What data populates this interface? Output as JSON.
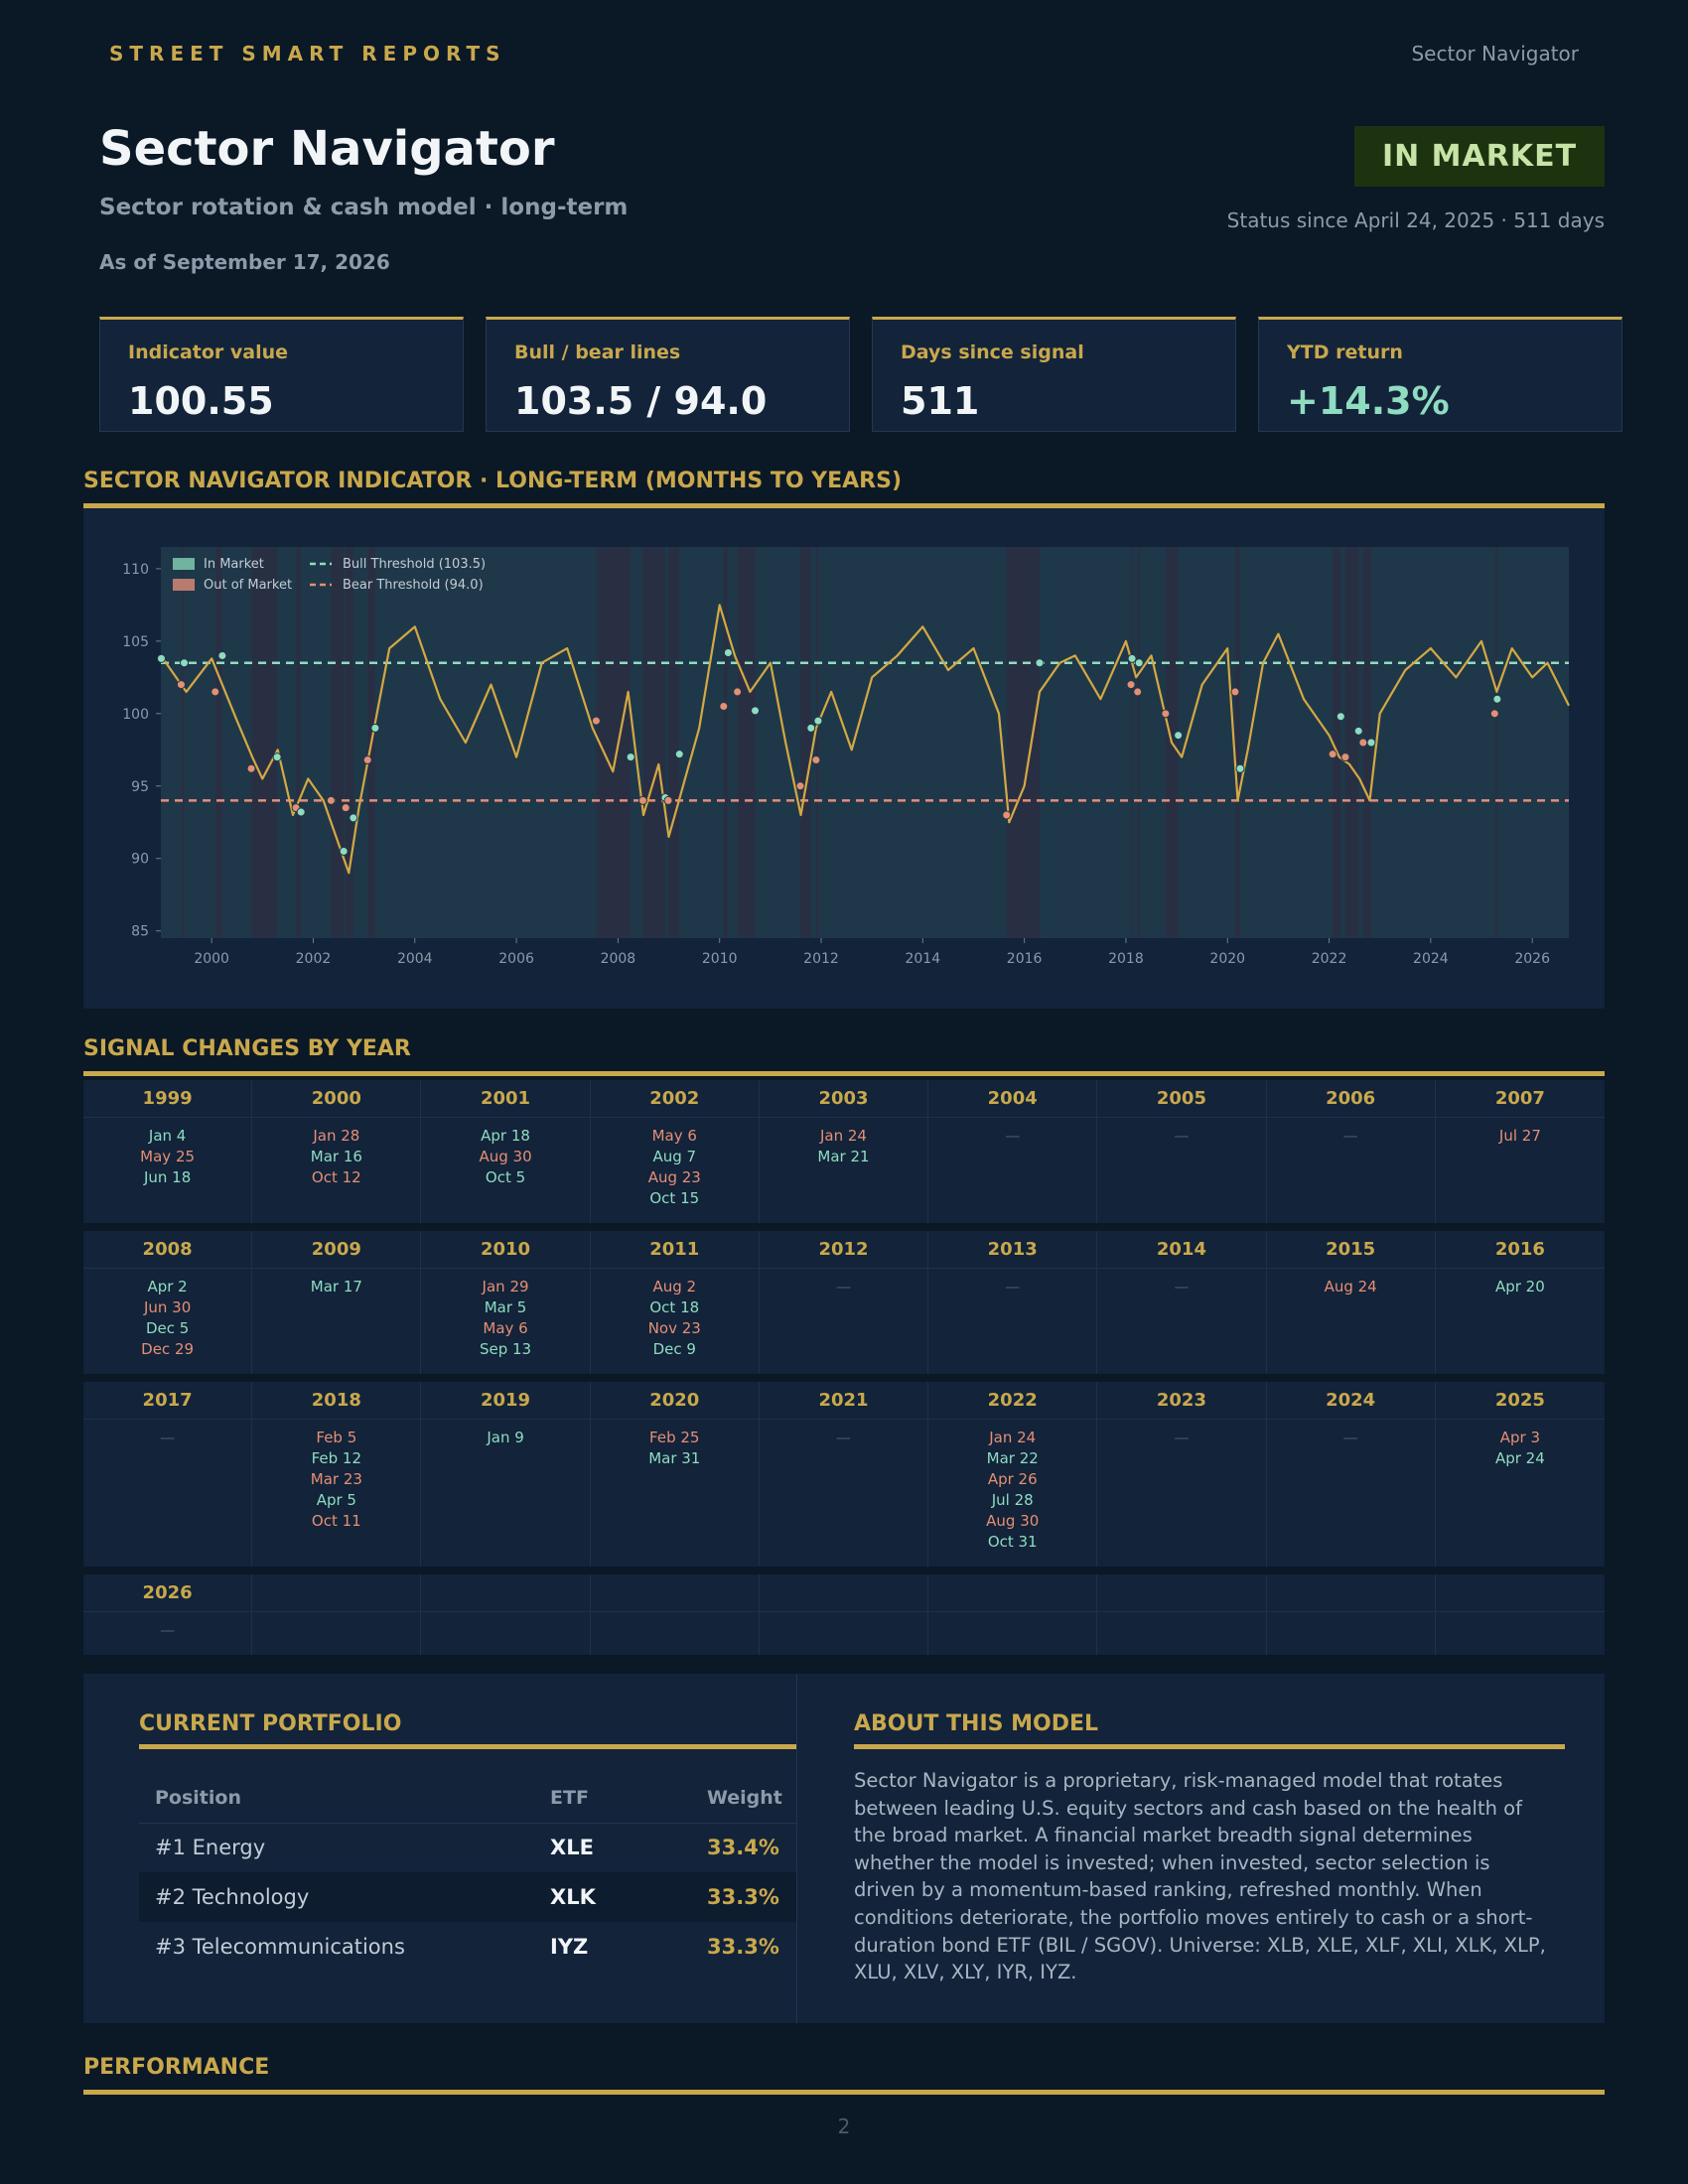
{
  "header": {
    "brand": "STREET SMART REPORTS",
    "nav_title": "Sector Navigator"
  },
  "report": {
    "title": "Sector Navigator",
    "subtitle": "Sector rotation & cash model · long-term",
    "as_of": "As of September 17, 2026",
    "status": "IN MARKET",
    "status_since": "Status since April 24, 2025 · 511 days"
  },
  "kpis": [
    {
      "label": "Indicator value",
      "value": "100.55"
    },
    {
      "label": "Bull / bear lines",
      "value": "103.5 / 94.0"
    },
    {
      "label": "Days since signal",
      "value": "511"
    },
    {
      "label": "YTD return",
      "value": "+14.3%"
    }
  ],
  "sections": {
    "indicator": "SECTOR NAVIGATOR INDICATOR · LONG-TERM (MONTHS TO YEARS)",
    "signals": "SIGNAL CHANGES BY YEAR",
    "portfolio": "CURRENT PORTFOLIO",
    "about": "ABOUT THIS MODEL",
    "performance": "PERFORMANCE"
  },
  "colors": {
    "accent": "#c9a84c",
    "in_market": "#8fdcc0",
    "out_market": "#e58f74",
    "line": "#d4a843"
  },
  "chart_data": {
    "type": "line",
    "legend": [
      "In Market",
      "Out of Market",
      "Bull Threshold (103.5)",
      "Bear Threshold (94.0)"
    ],
    "legend_position": "top-left",
    "grid": false,
    "x_range": [
      1999.0,
      2026.72
    ],
    "ylim": [
      84.5,
      111.5
    ],
    "x_ticks": [
      "2000",
      "2002",
      "2004",
      "2006",
      "2008",
      "2010",
      "2012",
      "2014",
      "2016",
      "2018",
      "2020",
      "2022",
      "2024",
      "2026"
    ],
    "y_ticks": [
      "85",
      "90",
      "95",
      "100",
      "105",
      "110"
    ],
    "bull_threshold": 103.5,
    "bear_threshold": 94.0,
    "x": [
      1999.0,
      1999.5,
      2000.0,
      2000.5,
      2000.8,
      2001.0,
      2001.3,
      2001.6,
      2001.9,
      2002.2,
      2002.5,
      2002.7,
      2002.9,
      2003.2,
      2003.5,
      2004.0,
      2004.5,
      2005.0,
      2005.5,
      2006.0,
      2006.5,
      2007.0,
      2007.5,
      2007.9,
      2008.2,
      2008.5,
      2008.8,
      2009.0,
      2009.2,
      2009.6,
      2010.0,
      2010.3,
      2010.6,
      2011.0,
      2011.3,
      2011.6,
      2011.9,
      2012.2,
      2012.6,
      2013.0,
      2013.5,
      2014.0,
      2014.5,
      2015.0,
      2015.5,
      2015.7,
      2016.0,
      2016.3,
      2016.7,
      2017.0,
      2017.5,
      2018.0,
      2018.2,
      2018.5,
      2018.9,
      2019.1,
      2019.5,
      2020.0,
      2020.2,
      2020.4,
      2020.7,
      2021.0,
      2021.5,
      2022.0,
      2022.2,
      2022.4,
      2022.6,
      2022.8,
      2023.0,
      2023.5,
      2024.0,
      2024.5,
      2025.0,
      2025.3,
      2025.6,
      2026.0,
      2026.3,
      2026.72
    ],
    "y": [
      104.0,
      101.5,
      103.8,
      99.5,
      97.0,
      95.5,
      97.5,
      93.0,
      95.5,
      94.0,
      91.0,
      89.0,
      93.5,
      99.0,
      104.5,
      106.0,
      101.0,
      98.0,
      102.0,
      97.0,
      103.5,
      104.5,
      99.0,
      96.0,
      101.5,
      93.0,
      96.5,
      91.5,
      94.0,
      99.0,
      107.5,
      104.0,
      101.5,
      103.5,
      98.0,
      93.0,
      99.0,
      101.5,
      97.5,
      102.5,
      104.0,
      106.0,
      103.0,
      104.5,
      100.0,
      92.5,
      95.0,
      101.5,
      103.5,
      104.0,
      101.0,
      105.0,
      102.5,
      104.0,
      98.0,
      97.0,
      102.0,
      104.5,
      94.0,
      97.5,
      103.5,
      105.5,
      101.0,
      98.5,
      97.0,
      96.5,
      95.5,
      94.0,
      100.0,
      103.0,
      104.5,
      102.5,
      105.0,
      101.5,
      104.5,
      102.5,
      103.5,
      100.55
    ],
    "signals": [
      {
        "x": 1999.01,
        "y": 103.8,
        "in": true
      },
      {
        "x": 1999.4,
        "y": 102.0,
        "in": false
      },
      {
        "x": 1999.46,
        "y": 103.5,
        "in": true
      },
      {
        "x": 2000.07,
        "y": 101.5,
        "in": false
      },
      {
        "x": 2000.21,
        "y": 104.0,
        "in": true
      },
      {
        "x": 2000.78,
        "y": 96.2,
        "in": false
      },
      {
        "x": 2001.29,
        "y": 97.0,
        "in": true
      },
      {
        "x": 2001.66,
        "y": 93.5,
        "in": false
      },
      {
        "x": 2001.76,
        "y": 93.2,
        "in": true
      },
      {
        "x": 2002.35,
        "y": 94.0,
        "in": false
      },
      {
        "x": 2002.6,
        "y": 90.5,
        "in": true
      },
      {
        "x": 2002.64,
        "y": 93.5,
        "in": false
      },
      {
        "x": 2002.79,
        "y": 92.8,
        "in": true
      },
      {
        "x": 2003.07,
        "y": 96.8,
        "in": false
      },
      {
        "x": 2003.22,
        "y": 99.0,
        "in": true
      },
      {
        "x": 2007.57,
        "y": 99.5,
        "in": false
      },
      {
        "x": 2008.25,
        "y": 97.0,
        "in": true
      },
      {
        "x": 2008.49,
        "y": 94.0,
        "in": false
      },
      {
        "x": 2008.93,
        "y": 94.2,
        "in": true
      },
      {
        "x": 2008.99,
        "y": 94.0,
        "in": false
      },
      {
        "x": 2009.21,
        "y": 97.2,
        "in": true
      },
      {
        "x": 2010.08,
        "y": 100.5,
        "in": false
      },
      {
        "x": 2010.17,
        "y": 104.2,
        "in": true
      },
      {
        "x": 2010.35,
        "y": 101.5,
        "in": false
      },
      {
        "x": 2010.7,
        "y": 100.2,
        "in": true
      },
      {
        "x": 2011.59,
        "y": 95.0,
        "in": false
      },
      {
        "x": 2011.8,
        "y": 99.0,
        "in": true
      },
      {
        "x": 2011.9,
        "y": 96.8,
        "in": false
      },
      {
        "x": 2011.94,
        "y": 99.5,
        "in": true
      },
      {
        "x": 2015.65,
        "y": 93.0,
        "in": false
      },
      {
        "x": 2016.3,
        "y": 103.5,
        "in": true
      },
      {
        "x": 2018.1,
        "y": 102.0,
        "in": false
      },
      {
        "x": 2018.12,
        "y": 103.8,
        "in": true
      },
      {
        "x": 2018.23,
        "y": 101.5,
        "in": false
      },
      {
        "x": 2018.26,
        "y": 103.5,
        "in": true
      },
      {
        "x": 2018.78,
        "y": 100.0,
        "in": false
      },
      {
        "x": 2019.03,
        "y": 98.5,
        "in": true
      },
      {
        "x": 2020.15,
        "y": 101.5,
        "in": false
      },
      {
        "x": 2020.25,
        "y": 96.2,
        "in": true
      },
      {
        "x": 2022.07,
        "y": 97.2,
        "in": false
      },
      {
        "x": 2022.23,
        "y": 99.8,
        "in": true
      },
      {
        "x": 2022.32,
        "y": 97.0,
        "in": false
      },
      {
        "x": 2022.58,
        "y": 98.8,
        "in": true
      },
      {
        "x": 2022.67,
        "y": 98.0,
        "in": false
      },
      {
        "x": 2022.83,
        "y": 98.0,
        "in": true
      },
      {
        "x": 2025.26,
        "y": 100.0,
        "in": false
      },
      {
        "x": 2025.31,
        "y": 101.0,
        "in": true
      }
    ],
    "out_periods": [
      [
        1999.4,
        1999.46
      ],
      [
        2000.07,
        2000.21
      ],
      [
        2000.78,
        2001.29
      ],
      [
        2001.66,
        2001.76
      ],
      [
        2002.35,
        2002.6
      ],
      [
        2002.64,
        2002.79
      ],
      [
        2003.07,
        2003.22
      ],
      [
        2007.57,
        2008.25
      ],
      [
        2008.49,
        2008.93
      ],
      [
        2008.99,
        2009.21
      ],
      [
        2010.08,
        2010.17
      ],
      [
        2010.35,
        2010.7
      ],
      [
        2011.59,
        2011.8
      ],
      [
        2011.9,
        2011.94
      ],
      [
        2015.65,
        2016.3
      ],
      [
        2018.1,
        2018.12
      ],
      [
        2018.23,
        2018.26
      ],
      [
        2018.78,
        2019.03
      ],
      [
        2020.15,
        2020.25
      ],
      [
        2022.07,
        2022.23
      ],
      [
        2022.32,
        2022.58
      ],
      [
        2022.67,
        2022.83
      ],
      [
        2025.26,
        2025.31
      ]
    ]
  },
  "signal_years": [
    {
      "year": "1999",
      "dates": [
        {
          "d": "Jan 4",
          "in": true
        },
        {
          "d": "May 25",
          "in": false
        },
        {
          "d": "Jun 18",
          "in": true
        }
      ]
    },
    {
      "year": "2000",
      "dates": [
        {
          "d": "Jan 28",
          "in": false
        },
        {
          "d": "Mar 16",
          "in": true
        },
        {
          "d": "Oct 12",
          "in": false
        }
      ]
    },
    {
      "year": "2001",
      "dates": [
        {
          "d": "Apr 18",
          "in": true
        },
        {
          "d": "Aug 30",
          "in": false
        },
        {
          "d": "Oct 5",
          "in": true
        }
      ]
    },
    {
      "year": "2002",
      "dates": [
        {
          "d": "May 6",
          "in": false
        },
        {
          "d": "Aug 7",
          "in": true
        },
        {
          "d": "Aug 23",
          "in": false
        },
        {
          "d": "Oct 15",
          "in": true
        }
      ]
    },
    {
      "year": "2003",
      "dates": [
        {
          "d": "Jan 24",
          "in": false
        },
        {
          "d": "Mar 21",
          "in": true
        }
      ]
    },
    {
      "year": "2004",
      "dates": []
    },
    {
      "year": "2005",
      "dates": []
    },
    {
      "year": "2006",
      "dates": []
    },
    {
      "year": "2007",
      "dates": [
        {
          "d": "Jul 27",
          "in": false
        }
      ]
    },
    {
      "year": "2008",
      "dates": [
        {
          "d": "Apr 2",
          "in": true
        },
        {
          "d": "Jun 30",
          "in": false
        },
        {
          "d": "Dec 5",
          "in": true
        },
        {
          "d": "Dec 29",
          "in": false
        }
      ]
    },
    {
      "year": "2009",
      "dates": [
        {
          "d": "Mar 17",
          "in": true
        }
      ]
    },
    {
      "year": "2010",
      "dates": [
        {
          "d": "Jan 29",
          "in": false
        },
        {
          "d": "Mar 5",
          "in": true
        },
        {
          "d": "May 6",
          "in": false
        },
        {
          "d": "Sep 13",
          "in": true
        }
      ]
    },
    {
      "year": "2011",
      "dates": [
        {
          "d": "Aug 2",
          "in": false
        },
        {
          "d": "Oct 18",
          "in": true
        },
        {
          "d": "Nov 23",
          "in": false
        },
        {
          "d": "Dec 9",
          "in": true
        }
      ]
    },
    {
      "year": "2012",
      "dates": []
    },
    {
      "year": "2013",
      "dates": []
    },
    {
      "year": "2014",
      "dates": []
    },
    {
      "year": "2015",
      "dates": [
        {
          "d": "Aug 24",
          "in": false
        }
      ]
    },
    {
      "year": "2016",
      "dates": [
        {
          "d": "Apr 20",
          "in": true
        }
      ]
    },
    {
      "year": "2017",
      "dates": []
    },
    {
      "year": "2018",
      "dates": [
        {
          "d": "Feb 5",
          "in": false
        },
        {
          "d": "Feb 12",
          "in": true
        },
        {
          "d": "Mar 23",
          "in": false
        },
        {
          "d": "Apr 5",
          "in": true
        },
        {
          "d": "Oct 11",
          "in": false
        }
      ]
    },
    {
      "year": "2019",
      "dates": [
        {
          "d": "Jan 9",
          "in": true
        }
      ]
    },
    {
      "year": "2020",
      "dates": [
        {
          "d": "Feb 25",
          "in": false
        },
        {
          "d": "Mar 31",
          "in": true
        }
      ]
    },
    {
      "year": "2021",
      "dates": []
    },
    {
      "year": "2022",
      "dates": [
        {
          "d": "Jan 24",
          "in": false
        },
        {
          "d": "Mar 22",
          "in": true
        },
        {
          "d": "Apr 26",
          "in": false
        },
        {
          "d": "Jul 28",
          "in": true
        },
        {
          "d": "Aug 30",
          "in": false
        },
        {
          "d": "Oct 31",
          "in": true
        }
      ]
    },
    {
      "year": "2023",
      "dates": []
    },
    {
      "year": "2024",
      "dates": []
    },
    {
      "year": "2025",
      "dates": [
        {
          "d": "Apr 3",
          "in": false
        },
        {
          "d": "Apr 24",
          "in": true
        }
      ]
    },
    {
      "year": "2026",
      "dates": []
    }
  ],
  "no_signal_mark": "—",
  "portfolio": {
    "headers": [
      "Position",
      "ETF",
      "Weight"
    ],
    "rows": [
      {
        "position": "#1 Energy",
        "etf": "XLE",
        "weight": "33.4%"
      },
      {
        "position": "#2 Technology",
        "etf": "XLK",
        "weight": "33.3%"
      },
      {
        "position": "#3 Telecommunications",
        "etf": "IYZ",
        "weight": "33.3%"
      }
    ]
  },
  "about_text": "Sector Navigator is a proprietary, risk-managed model that rotates between leading U.S. equity sectors and cash based on the health of the broad market. A financial market breadth signal determines whether the model is invested; when invested, sector selection is driven by a momentum-based ranking, refreshed monthly. When conditions deteriorate, the portfolio moves entirely to cash or a short-duration bond ETF (BIL / SGOV). Universe: XLB, XLE, XLF, XLI, XLK, XLP, XLU, XLV, XLY, IYR, IYZ.",
  "page_number": "2"
}
